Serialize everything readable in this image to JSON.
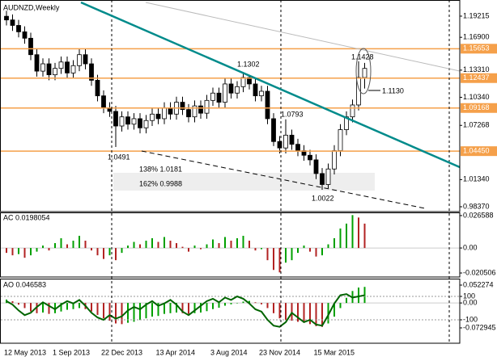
{
  "chart_data": [
    {
      "type": "candlestick",
      "title": "AUDNZD,Weekly",
      "categories": [
        "12 May 2013",
        null,
        null,
        null,
        null,
        null,
        null,
        null,
        "1 Sep 2013",
        null,
        null,
        null,
        null,
        null,
        null,
        null,
        "22 Dec 2013",
        null,
        null,
        null,
        null,
        null,
        null,
        null,
        null,
        "13 Apr 2014",
        null,
        null,
        null,
        null,
        null,
        null,
        null,
        null,
        "3 Aug 2014",
        null,
        null,
        null,
        null,
        null,
        null,
        null,
        "23 Nov 2014",
        null,
        null,
        null,
        null,
        null,
        null,
        null,
        null,
        "15 Mar 2015",
        null,
        null,
        null,
        null,
        null,
        null,
        null,
        null
      ],
      "open": [
        1.192,
        1.188,
        1.182,
        1.175,
        1.168,
        1.15,
        1.132,
        1.14,
        1.128,
        1.135,
        1.142,
        1.13,
        1.138,
        1.15,
        1.14,
        1.122,
        1.105,
        1.092,
        1.088,
        1.072,
        1.082,
        1.074,
        1.08,
        1.07,
        1.078,
        1.085,
        1.08,
        1.092,
        1.085,
        1.098,
        1.09,
        1.082,
        1.094,
        1.086,
        1.1,
        1.108,
        1.098,
        1.118,
        1.108,
        1.115,
        1.125,
        1.118,
        1.105,
        1.11,
        1.08,
        1.055,
        1.048,
        1.062,
        1.052,
        1.045,
        1.04,
        1.035,
        1.02,
        1.008,
        1.025,
        1.045,
        1.068,
        1.082,
        1.095,
        1.125
      ],
      "high": [
        1.198,
        1.194,
        1.188,
        1.181,
        1.174,
        1.156,
        1.146,
        1.146,
        1.141,
        1.148,
        1.148,
        1.144,
        1.156,
        1.156,
        1.146,
        1.128,
        1.111,
        1.098,
        1.094,
        1.088,
        1.088,
        1.086,
        1.086,
        1.084,
        1.091,
        1.091,
        1.098,
        1.098,
        1.104,
        1.104,
        1.096,
        1.1,
        1.1,
        1.106,
        1.114,
        1.114,
        1.124,
        1.124,
        1.121,
        1.1302,
        1.128,
        1.124,
        1.116,
        1.116,
        1.086,
        1.061,
        1.0793,
        1.068,
        1.058,
        1.051,
        1.046,
        1.041,
        1.026,
        1.031,
        1.051,
        1.074,
        1.088,
        1.101,
        1.1428,
        1.141
      ],
      "low": [
        1.182,
        1.176,
        1.169,
        1.162,
        1.144,
        1.126,
        1.126,
        1.122,
        1.122,
        1.129,
        1.124,
        1.124,
        1.132,
        1.134,
        1.116,
        1.099,
        1.086,
        1.082,
        1.0491,
        1.066,
        1.068,
        1.068,
        1.064,
        1.064,
        1.072,
        1.074,
        1.074,
        1.079,
        1.079,
        1.084,
        1.076,
        1.076,
        1.08,
        1.08,
        1.094,
        1.092,
        1.092,
        1.102,
        1.102,
        1.109,
        1.112,
        1.099,
        1.099,
        1.074,
        1.05,
        1.042,
        1.042,
        1.046,
        1.039,
        1.034,
        1.029,
        1.014,
        1.0022,
        1.004,
        1.019,
        1.039,
        1.062,
        1.076,
        1.089,
        1.113
      ],
      "close": [
        1.188,
        1.182,
        1.175,
        1.168,
        1.15,
        1.132,
        1.14,
        1.128,
        1.135,
        1.142,
        1.13,
        1.138,
        1.15,
        1.14,
        1.122,
        1.105,
        1.092,
        1.088,
        1.072,
        1.082,
        1.074,
        1.08,
        1.07,
        1.078,
        1.085,
        1.08,
        1.092,
        1.085,
        1.098,
        1.09,
        1.082,
        1.094,
        1.086,
        1.1,
        1.108,
        1.098,
        1.118,
        1.108,
        1.115,
        1.125,
        1.118,
        1.105,
        1.11,
        1.08,
        1.055,
        1.048,
        1.062,
        1.052,
        1.045,
        1.04,
        1.035,
        1.02,
        1.008,
        1.025,
        1.045,
        1.068,
        1.082,
        1.095,
        1.125,
        1.135
      ],
      "up_color": "#ffffff",
      "down_color": "#000000",
      "ylim": [
        0.9784,
        1.2098
      ],
      "yticks": [
        1.19215,
        {
          "value": 1.169,
          "label": "1.16900"
        },
        {
          "value": 1.1331,
          "label": "1.13310"
        },
        {
          "value": 1.1034,
          "label": "1.10340"
        },
        1.07268,
        {
          "value": 1.0134,
          "label": "1.01340"
        },
        {
          "value": 0.9837,
          "label": "0.98370"
        }
      ],
      "levels": [
        1.15653,
        1.12437,
        1.09168,
        {
          "value": 1.0445,
          "label": "1.04450"
        }
      ],
      "level_color": "#f5a04a",
      "annotations": [
        "1.1302",
        "1.1428",
        "1.1130",
        "1.0793",
        "1.0491",
        "138% 1.0181",
        "162% 0.9988",
        "1.0022"
      ]
    },
    {
      "type": "bar",
      "title": "AC 0.0198054",
      "values": [
        -0.004,
        -0.006,
        -0.005,
        -0.008,
        -0.006,
        -0.003,
        0.002,
        -0.002,
        0.004,
        0.008,
        0.003,
        0.006,
        0.01,
        0.006,
        -0.002,
        -0.006,
        -0.009,
        -0.006,
        -0.01,
        -0.004,
        0.002,
        0.005,
        0.003,
        0.006,
        0.008,
        0.005,
        0.009,
        0.006,
        0.004,
        0.001,
        -0.003,
        0.002,
        -0.001,
        0.003,
        0.007,
        0.004,
        0.009,
        0.006,
        0.008,
        0.01,
        0.006,
        -0.002,
        -0.001,
        -0.01,
        -0.018,
        -0.02,
        -0.012,
        -0.01,
        -0.004,
        0.002,
        -0.003,
        -0.007,
        -0.006,
        0.003,
        0.008,
        0.016,
        0.02,
        0.027,
        0.025,
        0.02
      ],
      "up_color": "#00a000",
      "down_color": "#b22222",
      "ylim": [
        -0.0238,
        0.0292
      ],
      "yticks": [
        0.026588,
        {
          "value": 0,
          "label": "0.00"
        },
        -0.020506
      ]
    },
    {
      "type": "bar",
      "title": "AO 0.046583",
      "values": [
        0.01,
        0.005,
        -0.005,
        -0.015,
        -0.025,
        -0.03,
        -0.028,
        -0.032,
        -0.03,
        -0.025,
        -0.02,
        -0.018,
        -0.015,
        -0.018,
        -0.025,
        -0.035,
        -0.045,
        -0.052,
        -0.06,
        -0.062,
        -0.058,
        -0.055,
        -0.05,
        -0.045,
        -0.04,
        -0.038,
        -0.032,
        -0.03,
        -0.028,
        -0.03,
        -0.032,
        -0.03,
        -0.028,
        -0.024,
        -0.018,
        -0.014,
        -0.008,
        -0.004,
        0.0,
        0.004,
        0.006,
        0.002,
        -0.004,
        -0.015,
        -0.03,
        -0.045,
        -0.05,
        -0.052,
        -0.055,
        -0.058,
        -0.062,
        -0.068,
        -0.07,
        -0.06,
        -0.04,
        -0.015,
        0.015,
        0.035,
        0.045,
        0.047
      ],
      "up_color": "#00a000",
      "down_color": "#b22222",
      "ylim": [
        -0.1179,
        0.0712
      ],
      "yticks": [
        0.052274,
        {
          "value": 0,
          "label": "0.00"
        },
        -0.072945
      ],
      "line": {
        "color": "#006400",
        "axis": "y2",
        "values": [
          60,
          30,
          -20,
          -60,
          -40,
          10,
          50,
          20,
          -10,
          30,
          60,
          40,
          70,
          20,
          -40,
          -80,
          -100,
          -60,
          -90,
          -70,
          -20,
          10,
          -10,
          30,
          60,
          20,
          40,
          70,
          30,
          -30,
          -60,
          -20,
          20,
          60,
          80,
          50,
          90,
          70,
          100,
          80,
          40,
          -10,
          -30,
          -100,
          -150,
          -160,
          -120,
          -40,
          -80,
          -120,
          -100,
          -140,
          -150,
          -60,
          40,
          110,
          120,
          90,
          100,
          110
        ]
      },
      "y2lim": [
        -300,
        252
      ],
      "y2ticks": [
        100,
        -100
      ]
    }
  ]
}
